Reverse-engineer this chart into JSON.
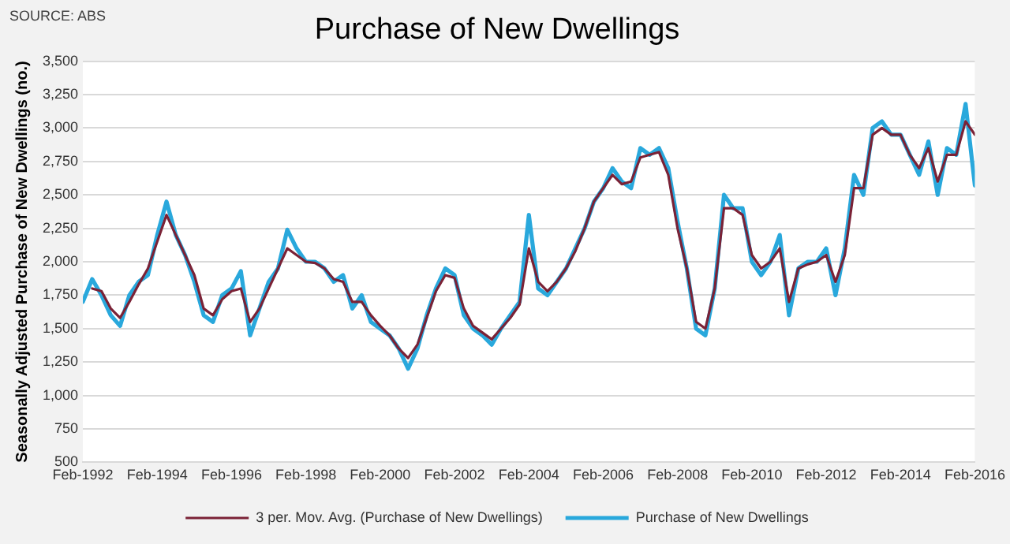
{
  "chart_data": {
    "type": "line",
    "title": "Purchase of New Dwellings",
    "ylabel": "Seasonally Adjusted Purchase of New Dwellings (no.)",
    "annotations": [
      "SOURCE: ABS"
    ],
    "x": [
      "1992-02",
      "1992-05",
      "1992-08",
      "1992-11",
      "1993-02",
      "1993-05",
      "1993-08",
      "1993-11",
      "1994-02",
      "1994-05",
      "1994-08",
      "1994-11",
      "1995-02",
      "1995-05",
      "1995-08",
      "1995-11",
      "1996-02",
      "1996-05",
      "1996-08",
      "1996-11",
      "1997-02",
      "1997-05",
      "1997-08",
      "1997-11",
      "1998-02",
      "1998-05",
      "1998-08",
      "1998-11",
      "1999-02",
      "1999-05",
      "1999-08",
      "1999-11",
      "2000-02",
      "2000-05",
      "2000-08",
      "2000-11",
      "2001-02",
      "2001-05",
      "2001-08",
      "2001-11",
      "2002-02",
      "2002-05",
      "2002-08",
      "2002-11",
      "2003-02",
      "2003-05",
      "2003-08",
      "2003-11",
      "2004-02",
      "2004-05",
      "2004-08",
      "2004-11",
      "2005-02",
      "2005-05",
      "2005-08",
      "2005-11",
      "2006-02",
      "2006-05",
      "2006-08",
      "2006-11",
      "2007-02",
      "2007-05",
      "2007-08",
      "2007-11",
      "2008-02",
      "2008-05",
      "2008-08",
      "2008-11",
      "2009-02",
      "2009-05",
      "2009-08",
      "2009-11",
      "2010-02",
      "2010-05",
      "2010-08",
      "2010-11",
      "2011-02",
      "2011-05",
      "2011-08",
      "2011-11",
      "2012-02",
      "2012-05",
      "2012-08",
      "2012-11",
      "2013-02",
      "2013-05",
      "2013-08",
      "2013-11",
      "2014-02",
      "2014-05",
      "2014-08",
      "2014-11",
      "2015-02",
      "2015-05",
      "2015-08",
      "2015-11",
      "2016-02"
    ],
    "series": [
      {
        "name": "Purchase of New Dwellings",
        "color": "#29a8dc",
        "values": [
          1700,
          1870,
          1750,
          1600,
          1520,
          1750,
          1850,
          1900,
          2200,
          2450,
          2200,
          2050,
          1850,
          1600,
          1550,
          1750,
          1800,
          1930,
          1450,
          1650,
          1850,
          1950,
          2240,
          2100,
          2000,
          2000,
          1950,
          1850,
          1900,
          1650,
          1750,
          1550,
          1500,
          1450,
          1350,
          1200,
          1350,
          1600,
          1800,
          1950,
          1900,
          1600,
          1500,
          1450,
          1380,
          1500,
          1600,
          1700,
          2350,
          1800,
          1750,
          1850,
          1950,
          2100,
          2250,
          2450,
          2550,
          2700,
          2600,
          2550,
          2850,
          2800,
          2850,
          2700,
          2300,
          1950,
          1500,
          1450,
          1800,
          2500,
          2400,
          2400,
          2000,
          1900,
          2000,
          2200,
          1600,
          1950,
          2000,
          2000,
          2100,
          1750,
          2100,
          2650,
          2500,
          3000,
          3050,
          2950,
          2950,
          2800,
          2650,
          2900,
          2500,
          2850,
          2800,
          3180,
          2570
        ]
      },
      {
        "name": "3 per. Mov. Avg. (Purchase of New Dwellings)",
        "color": "#7b2236",
        "values": [
          null,
          1800,
          1780,
          1650,
          1580,
          1700,
          1830,
          1950,
          2150,
          2350,
          2200,
          2050,
          1900,
          1650,
          1600,
          1720,
          1780,
          1800,
          1550,
          1650,
          1800,
          1950,
          2100,
          2050,
          2000,
          1990,
          1950,
          1870,
          1850,
          1700,
          1700,
          1600,
          1520,
          1450,
          1350,
          1280,
          1380,
          1580,
          1780,
          1900,
          1880,
          1650,
          1520,
          1470,
          1420,
          1500,
          1580,
          1680,
          2100,
          1850,
          1780,
          1850,
          1950,
          2080,
          2250,
          2450,
          2550,
          2650,
          2580,
          2600,
          2780,
          2800,
          2820,
          2650,
          2250,
          1950,
          1550,
          1500,
          1800,
          2400,
          2400,
          2350,
          2050,
          1950,
          2000,
          2100,
          1700,
          1950,
          1980,
          2000,
          2050,
          1850,
          2050,
          2550,
          2550,
          2950,
          3000,
          2950,
          2950,
          2800,
          2700,
          2850,
          2600,
          2800,
          2800,
          3050,
          2950
        ]
      }
    ],
    "xlim": [
      "1992-02",
      "2016-02"
    ],
    "xticks": [
      {
        "value": "1992-02",
        "label": "Feb-1992"
      },
      {
        "value": "1994-02",
        "label": "Feb-1994"
      },
      {
        "value": "1996-02",
        "label": "Feb-1996"
      },
      {
        "value": "1998-02",
        "label": "Feb-1998"
      },
      {
        "value": "2000-02",
        "label": "Feb-2000"
      },
      {
        "value": "2002-02",
        "label": "Feb-2002"
      },
      {
        "value": "2004-02",
        "label": "Feb-2004"
      },
      {
        "value": "2006-02",
        "label": "Feb-2006"
      },
      {
        "value": "2008-02",
        "label": "Feb-2008"
      },
      {
        "value": "2010-02",
        "label": "Feb-2010"
      },
      {
        "value": "2012-02",
        "label": "Feb-2012"
      },
      {
        "value": "2014-02",
        "label": "Feb-2014"
      },
      {
        "value": "2016-02",
        "label": "Feb-2016"
      }
    ],
    "ylim": [
      500,
      3500
    ],
    "yticks": [
      500,
      750,
      {
        "value": 1000,
        "label": "1,000"
      },
      {
        "value": 1250,
        "label": "1,250"
      },
      {
        "value": 1500,
        "label": "1,500"
      },
      {
        "value": 1750,
        "label": "1,750"
      },
      {
        "value": 2000,
        "label": "2,000"
      },
      {
        "value": 2250,
        "label": "2,250"
      },
      {
        "value": 2500,
        "label": "2,500"
      },
      {
        "value": 2750,
        "label": "2,750"
      },
      {
        "value": 3000,
        "label": "3,000"
      },
      {
        "value": 3250,
        "label": "3,250"
      },
      {
        "value": 3500,
        "label": "3,500"
      }
    ],
    "grid": "y",
    "legend": "bottom",
    "marker": "none",
    "line_style": "solid"
  }
}
